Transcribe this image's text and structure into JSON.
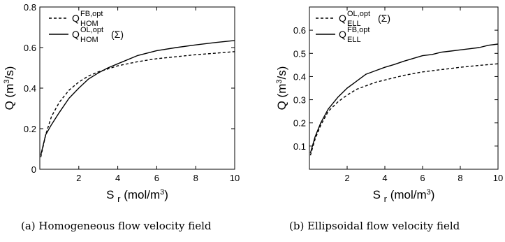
{
  "chart_data": [
    {
      "type": "line",
      "xlabel": "S r (mol/m3)",
      "ylabel": "Q (m3/s)",
      "xlim": [
        0,
        10
      ],
      "ylim": [
        0,
        0.8
      ],
      "xticks": [
        "2",
        "4",
        "6",
        "8",
        "10"
      ],
      "yticks": [
        "0",
        "0.2",
        "0.4",
        "0.6",
        "0.8"
      ],
      "legend_position": "top-left",
      "caption": "(a)  Homogeneous flow velocity field",
      "series": [
        {
          "name": "Q_HOM^FB,opt",
          "label_main": "Q",
          "label_sup": "FB,opt",
          "label_sub": "HOM",
          "label_suffix": "",
          "style": "dashed",
          "x": [
            0.05,
            0.3,
            0.6,
            1.0,
            1.5,
            2.0,
            2.5,
            3.0,
            3.5,
            4.0,
            5.0,
            6.0,
            7.0,
            8.0,
            9.0,
            10.0
          ],
          "y": [
            0.06,
            0.17,
            0.26,
            0.33,
            0.39,
            0.43,
            0.46,
            0.48,
            0.495,
            0.51,
            0.53,
            0.545,
            0.555,
            0.565,
            0.572,
            0.58
          ]
        },
        {
          "name": "Q_HOM^OL,opt(Σ)",
          "label_main": "Q",
          "label_sup": "OL,opt",
          "label_sub": "HOM",
          "label_suffix": "(Σ)",
          "style": "solid",
          "x": [
            0.05,
            0.3,
            0.6,
            1.0,
            1.5,
            2.0,
            2.5,
            3.0,
            3.5,
            4.0,
            5.0,
            6.0,
            7.0,
            8.0,
            9.0,
            10.0
          ],
          "y": [
            0.07,
            0.17,
            0.22,
            0.28,
            0.35,
            0.4,
            0.445,
            0.475,
            0.5,
            0.52,
            0.56,
            0.585,
            0.6,
            0.613,
            0.625,
            0.635
          ]
        }
      ]
    },
    {
      "type": "line",
      "xlabel": "S r (mol/m3)",
      "ylabel": "Q (m3/s)",
      "xlim": [
        0,
        10
      ],
      "ylim": [
        0,
        0.7
      ],
      "xticks": [
        "2",
        "4",
        "6",
        "8",
        "10"
      ],
      "yticks": [
        "0.1",
        "0.2",
        "0.3",
        "0.4",
        "0.5",
        "0.6"
      ],
      "legend_position": "top-left",
      "caption": "(b)  Ellipsoidal flow velocity field",
      "series": [
        {
          "name": "Q_ELL^OL,opt(Σ)",
          "label_main": "Q",
          "label_sup": "OL,opt",
          "label_sub": "ELL",
          "label_suffix": "(Σ)",
          "style": "dashed",
          "x": [
            0.05,
            0.3,
            0.6,
            1.0,
            1.5,
            2.0,
            2.5,
            3.0,
            3.5,
            4.0,
            5.0,
            6.0,
            7.0,
            8.0,
            9.0,
            10.0
          ],
          "y": [
            0.06,
            0.13,
            0.19,
            0.25,
            0.29,
            0.32,
            0.345,
            0.36,
            0.375,
            0.385,
            0.405,
            0.42,
            0.43,
            0.44,
            0.448,
            0.455
          ]
        },
        {
          "name": "Q_ELL^FB,opt",
          "label_main": "Q",
          "label_sup": "FB,opt",
          "label_sub": "ELL",
          "label_suffix": "",
          "style": "solid",
          "x": [
            0.05,
            0.3,
            0.6,
            1.0,
            1.5,
            2.0,
            2.5,
            3.0,
            3.5,
            4.0,
            4.5,
            5.0,
            5.5,
            6.0,
            6.5,
            7.0,
            7.5,
            8.0,
            8.5,
            9.0,
            9.5,
            10.0
          ],
          "y": [
            0.07,
            0.14,
            0.2,
            0.26,
            0.31,
            0.35,
            0.38,
            0.41,
            0.425,
            0.44,
            0.452,
            0.466,
            0.478,
            0.49,
            0.495,
            0.505,
            0.51,
            0.515,
            0.52,
            0.525,
            0.535,
            0.54
          ]
        }
      ]
    }
  ]
}
